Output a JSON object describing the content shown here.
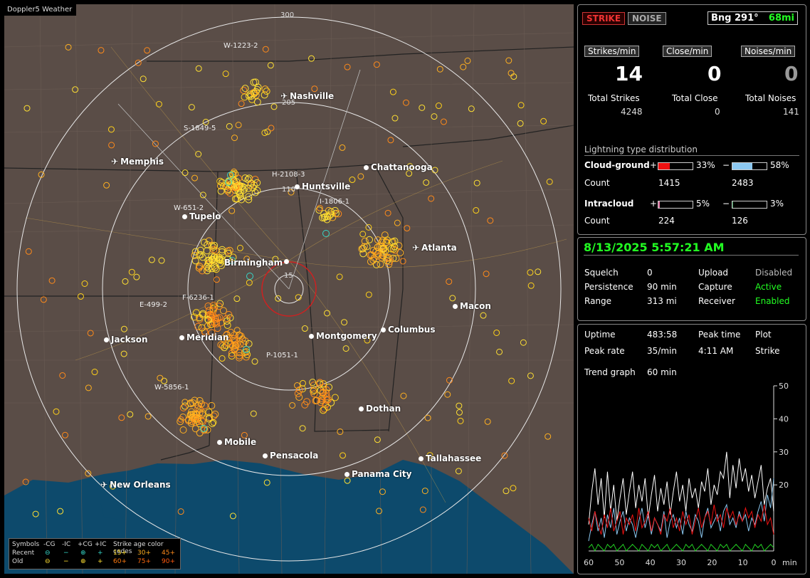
{
  "app_title": "Doppler5 Weather",
  "map": {
    "ring_labels": [
      "300",
      "205",
      "110",
      "15"
    ],
    "cities": [
      {
        "name": "Nashville",
        "icon": "plane"
      },
      {
        "name": "Memphis",
        "icon": "plane"
      },
      {
        "name": "Chattanooga",
        "icon": "dot"
      },
      {
        "name": "Huntsville",
        "icon": "dot"
      },
      {
        "name": "Tupelo",
        "icon": "dot"
      },
      {
        "name": "Atlanta",
        "icon": "plane"
      },
      {
        "name": "Birmingham",
        "icon": "dot"
      },
      {
        "name": "Macon",
        "icon": "dot"
      },
      {
        "name": "Jackson",
        "icon": "dot"
      },
      {
        "name": "Meridian",
        "icon": "dot"
      },
      {
        "name": "Montgomery",
        "icon": "dot"
      },
      {
        "name": "Columbus",
        "icon": "dot"
      },
      {
        "name": "Dothan",
        "icon": "dot"
      },
      {
        "name": "Mobile",
        "icon": "dot"
      },
      {
        "name": "Pensacola",
        "icon": "dot"
      },
      {
        "name": "Tallahassee",
        "icon": "dot"
      },
      {
        "name": "Panama City",
        "icon": "dot"
      },
      {
        "name": "New Orleans",
        "icon": "plane"
      }
    ],
    "sensors": [
      "W-1223-2",
      "S-1849-5",
      "H-2108-3",
      "W-651-2",
      "I-1806-1",
      "F-6236-1",
      "E-499-2",
      "P-1051-1",
      "W-5856-1"
    ],
    "legend": {
      "symbols_label": "Symbols",
      "headers": [
        "-CG",
        "-IC",
        "+CG",
        "+IC"
      ],
      "age_label": "Strike age color codes",
      "recent_label": "Recent",
      "old_label": "Old",
      "recent_ages": [
        "15+",
        "30+",
        "45+"
      ],
      "old_ages": [
        "60+",
        "75+",
        "90+"
      ],
      "glyphs": {
        "neg_cg": "⊖",
        "neg_ic": "−",
        "pos_cg": "⊕",
        "pos_ic": "+"
      },
      "colors": {
        "recent": "#36d6c8",
        "old": "#ffe033",
        "age15": "#ffe033",
        "age30": "#ffb020",
        "age45": "#ff8a1a",
        "age60": "#ff7a10",
        "age75": "#ff6a10",
        "age90": "#ff5a10"
      }
    }
  },
  "panel1": {
    "strike_btn": "STRIKE",
    "noise_btn": "NOISE",
    "bearing": "Bng 291°",
    "distance": "68mi",
    "strikes_min_label": "Strikes/min",
    "close_min_label": "Close/min",
    "noises_min_label": "Noises/min",
    "strikes_min": "14",
    "close_min": "0",
    "noises_min": "0",
    "total_strikes_label": "Total Strikes",
    "total_close_label": "Total Close",
    "total_noises_label": "Total Noises",
    "total_strikes": "4248",
    "total_close": "0",
    "total_noises": "141",
    "dist_title": "Lightning type distribution",
    "cg_label": "Cloud-ground",
    "ic_label": "Intracloud",
    "count_label": "Count",
    "plus": "+",
    "minus": "−",
    "cg_pos_pct": "33%",
    "cg_neg_pct": "58%",
    "ic_pos_pct": "5%",
    "ic_neg_pct": "3%",
    "cg_pos_count": "1415",
    "cg_neg_count": "2483",
    "ic_pos_count": "224",
    "ic_neg_count": "126",
    "bar_fill": {
      "cg_pos": 0.33,
      "cg_neg": 0.58,
      "ic_pos": 0.05,
      "ic_neg": 0.03
    },
    "bar_colors": {
      "cg_pos": "#e11",
      "cg_neg": "#8cc8f0",
      "ic_pos": "#e070a0",
      "ic_neg": "#2a8a4a"
    }
  },
  "panel2": {
    "datetime": "8/13/2025 5:57:21 AM",
    "squelch_label": "Squelch",
    "squelch": "0",
    "upload_label": "Upload",
    "upload": "Disabled",
    "persistence_label": "Persistence",
    "persistence": "90 min",
    "capture_label": "Capture",
    "capture": "Active",
    "range_label": "Range",
    "range": "313 mi",
    "receiver_label": "Receiver",
    "receiver": "Enabled"
  },
  "panel3": {
    "uptime_label": "Uptime",
    "uptime": "483:58",
    "peak_time_label": "Peak time",
    "peak_time": "4:11 AM",
    "plot_label": "Plot",
    "peak_rate_label": "Peak rate",
    "peak_rate": "35/min",
    "plot_value": "Strike",
    "trend_label": "Trend graph",
    "trend_value": "60 min",
    "y_ticks": [
      "50",
      "40",
      "30",
      "20"
    ],
    "x_ticks": [
      "60",
      "50",
      "40",
      "30",
      "20",
      "10",
      "0"
    ],
    "x_unit": "min"
  },
  "chart_data": {
    "type": "line",
    "x_label": "",
    "y_label": "",
    "ylim": [
      0,
      50
    ],
    "xlim": [
      60,
      0
    ],
    "series": [
      {
        "color": "#ffffff",
        "values": [
          8,
          18,
          25,
          14,
          22,
          10,
          24,
          12,
          20,
          9,
          16,
          22,
          11,
          18,
          24,
          13,
          20,
          15,
          22,
          10,
          17,
          23,
          12,
          19,
          14,
          21,
          11,
          18,
          24,
          15,
          20,
          12,
          22,
          16,
          19,
          13,
          21,
          18,
          25,
          14,
          20,
          17,
          24,
          22,
          30,
          16,
          26,
          19,
          28,
          21,
          25,
          18,
          23,
          16,
          21,
          26,
          14,
          19,
          22,
          12
        ]
      },
      {
        "color": "#8cc8f0",
        "values": [
          3,
          8,
          12,
          6,
          10,
          4,
          11,
          7,
          13,
          5,
          9,
          12,
          6,
          10,
          8,
          4,
          9,
          13,
          7,
          11,
          5,
          10,
          8,
          6,
          12,
          4,
          9,
          11,
          7,
          10,
          5,
          12,
          8,
          6,
          11,
          9,
          4,
          10,
          13,
          7,
          9,
          11,
          6,
          12,
          14,
          8,
          10,
          7,
          12,
          9,
          11,
          6,
          10,
          8,
          12,
          15,
          9,
          17,
          13,
          22
        ]
      },
      {
        "color": "#e11",
        "values": [
          10,
          6,
          12,
          8,
          5,
          11,
          7,
          13,
          6,
          9,
          12,
          5,
          10,
          8,
          11,
          6,
          13,
          7,
          9,
          12,
          6,
          10,
          8,
          5,
          11,
          9,
          13,
          7,
          10,
          6,
          12,
          8,
          11,
          5,
          9,
          13,
          7,
          10,
          12,
          8,
          14,
          9,
          11,
          7,
          13,
          10,
          12,
          8,
          11,
          9,
          13,
          10,
          12,
          7,
          11,
          9,
          14,
          8,
          10,
          5
        ]
      },
      {
        "color": "#2c2",
        "values": [
          1,
          2,
          0,
          2,
          1,
          0,
          2,
          1,
          2,
          0,
          1,
          2,
          0,
          1,
          2,
          1,
          0,
          2,
          1,
          0,
          2,
          1,
          2,
          0,
          1,
          2,
          0,
          1,
          2,
          1,
          0,
          2,
          1,
          2,
          0,
          1,
          2,
          1,
          0,
          2,
          1,
          0,
          2,
          1,
          2,
          0,
          1,
          2,
          1,
          0,
          2,
          1,
          0,
          2,
          1,
          2,
          0,
          1,
          2,
          1
        ]
      }
    ]
  }
}
